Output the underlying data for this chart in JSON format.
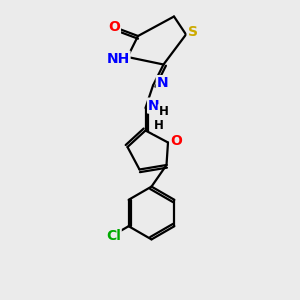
{
  "bg_color": "#ebebeb",
  "atom_colors": {
    "C": "#000000",
    "H": "#000000",
    "N": "#0000ff",
    "O": "#ff0000",
    "S": "#ccaa00",
    "Cl": "#00aa00"
  },
  "bond_color": "#000000",
  "bond_width": 1.6,
  "dbl_sep": 0.09,
  "font_size_atom": 10,
  "font_size_h": 8.5
}
